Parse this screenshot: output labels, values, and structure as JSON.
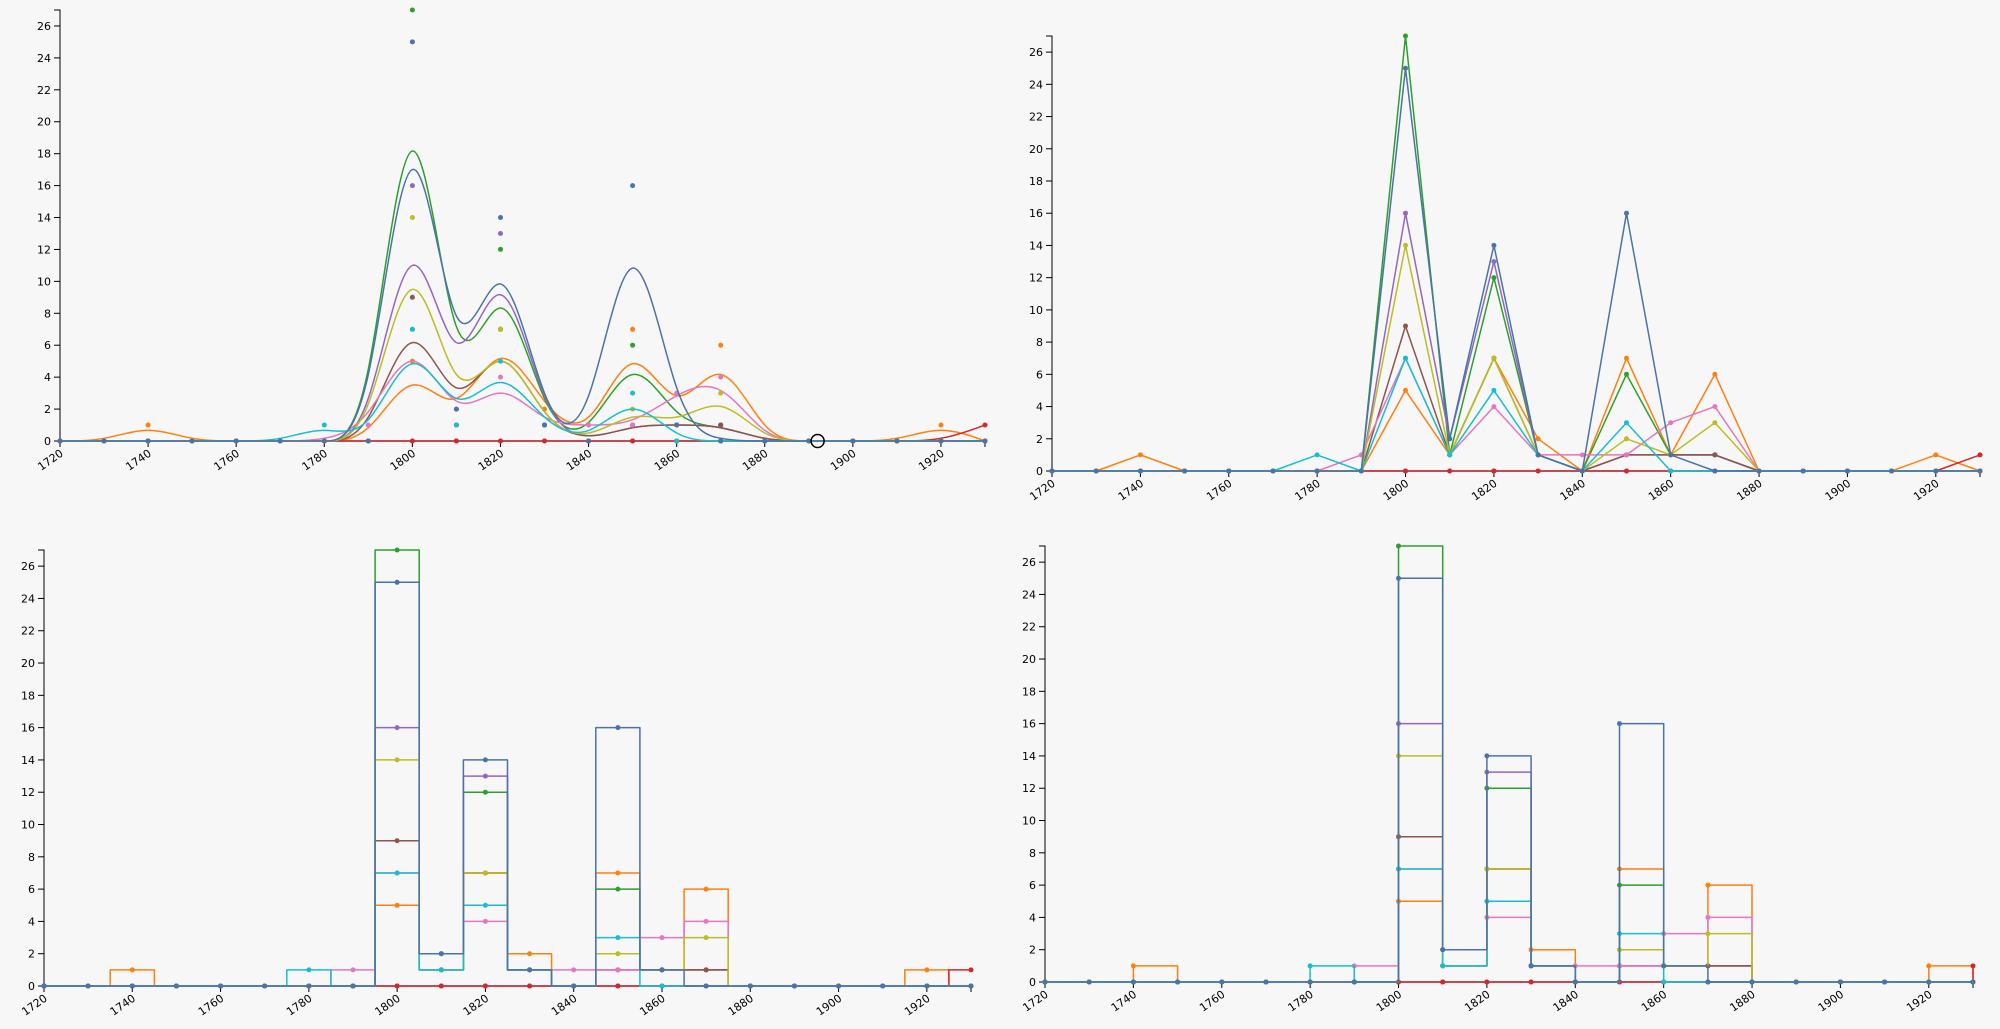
{
  "chart_data": {
    "type": "line",
    "x": [
      1720,
      1730,
      1740,
      1750,
      1760,
      1770,
      1780,
      1790,
      1800,
      1810,
      1820,
      1830,
      1840,
      1850,
      1860,
      1870,
      1880,
      1890,
      1900,
      1910,
      1920,
      1930
    ],
    "xlim": [
      1720,
      1930
    ],
    "xticks": [
      "1720",
      "1740",
      "1760",
      "1780",
      "1800",
      "1820",
      "1840",
      "1860",
      "1880",
      "1900",
      "1920"
    ],
    "ylim": [
      0,
      27
    ],
    "yticks": [
      "0",
      "2",
      "4",
      "6",
      "8",
      "10",
      "12",
      "14",
      "16",
      "18",
      "20",
      "22",
      "24",
      "26"
    ],
    "series": [
      {
        "color": "#1f77b4",
        "values": [
          0,
          0,
          0,
          0,
          0,
          0,
          0,
          0,
          0,
          0,
          0,
          0,
          0,
          0,
          0,
          0,
          0,
          0,
          0,
          0,
          0,
          0
        ]
      },
      {
        "color": "#ff7f0e",
        "values": [
          0,
          0,
          1,
          0,
          0,
          0,
          0,
          0,
          5,
          1,
          7,
          2,
          0,
          7,
          1,
          6,
          0,
          0,
          0,
          0,
          1,
          0
        ]
      },
      {
        "color": "#2ca02c",
        "values": [
          0,
          0,
          0,
          0,
          0,
          0,
          0,
          0,
          27,
          1,
          12,
          1,
          0,
          6,
          1,
          1,
          0,
          0,
          0,
          0,
          0,
          0
        ]
      },
      {
        "color": "#d62728",
        "values": [
          0,
          0,
          0,
          0,
          0,
          0,
          0,
          0,
          0,
          0,
          0,
          0,
          0,
          0,
          0,
          0,
          0,
          0,
          0,
          0,
          0,
          1
        ]
      },
      {
        "color": "#9467bd",
        "values": [
          0,
          0,
          0,
          0,
          0,
          0,
          0,
          0,
          16,
          2,
          13,
          1,
          0,
          1,
          1,
          1,
          0,
          0,
          0,
          0,
          0,
          0
        ]
      },
      {
        "color": "#8c564b",
        "values": [
          0,
          0,
          0,
          0,
          0,
          0,
          0,
          0,
          9,
          1,
          7,
          1,
          0,
          1,
          1,
          1,
          0,
          0,
          0,
          0,
          0,
          0
        ]
      },
      {
        "color": "#e377c2",
        "values": [
          0,
          0,
          0,
          0,
          0,
          0,
          0,
          1,
          7,
          1,
          4,
          1,
          1,
          1,
          3,
          4,
          0,
          0,
          0,
          0,
          0,
          0
        ]
      },
      {
        "color": "#bcbd22",
        "values": [
          0,
          0,
          0,
          0,
          0,
          0,
          0,
          0,
          14,
          1,
          7,
          1,
          0,
          2,
          1,
          3,
          0,
          0,
          0,
          0,
          0,
          0
        ]
      },
      {
        "color": "#17becf",
        "values": [
          0,
          0,
          0,
          0,
          0,
          0,
          1,
          0,
          7,
          1,
          5,
          1,
          0,
          3,
          0,
          0,
          0,
          0,
          0,
          0,
          0,
          0
        ]
      },
      {
        "color": "#4a73a8",
        "values": [
          0,
          0,
          0,
          0,
          0,
          0,
          0,
          0,
          25,
          2,
          14,
          1,
          0,
          16,
          1,
          0,
          0,
          0,
          0,
          0,
          0,
          0
        ]
      }
    ],
    "panels": [
      "curve-basis",
      "linear",
      "step-centered",
      "step-after"
    ],
    "grid": false,
    "legend": "none"
  }
}
